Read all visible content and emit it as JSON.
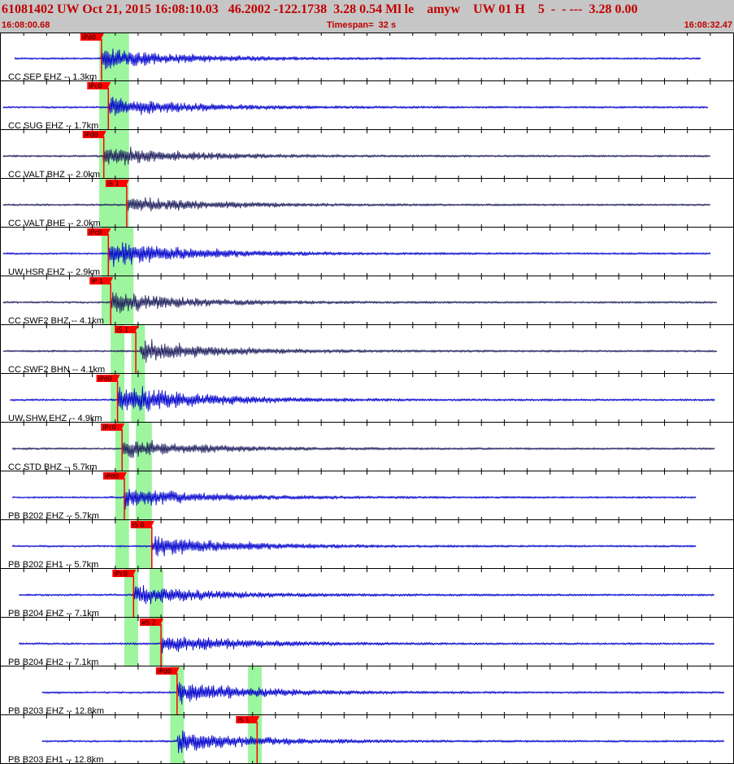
{
  "header": {
    "title": "61081402 UW Oct 21, 2015 16:08:10.03   46.2002 -122.1738  3.28 0.54 Ml le    amyw    UW 01 H    5  -  - ---  3.28 0.00",
    "start_time": "16:08:00.68",
    "timespan": "Timespan=  32 s",
    "end_time": "16:08:32.47"
  },
  "colors": {
    "header_bg": "#c6c6c6",
    "header_text": "#c00000",
    "trace_blue": "#0000cc",
    "trace_dark": "#1c1c5c",
    "pick_red": "#ff0000",
    "pick_window_green": "#9df59d",
    "minute_ticks": "#000000"
  },
  "time_window": {
    "start": 0,
    "end": 32
  },
  "channels": [
    {
      "label": "CC SEP EHZ -- 1.3km",
      "color": "blue",
      "trace": [
        0.6,
        30.6
      ],
      "onset": 4.4,
      "amp": 0.55,
      "pwin": [
        4.3,
        4.9
      ],
      "swin": [
        4.9,
        5.6
      ],
      "picks": [
        {
          "tag": "iPd0",
          "t": 4.4
        }
      ]
    },
    {
      "label": "CC SUG EHZ -- 1.7km",
      "color": "blue",
      "trace": [
        0.1,
        30.9
      ],
      "onset": 4.7,
      "amp": 0.5,
      "pwin": [
        4.3,
        4.9
      ],
      "swin": [
        4.9,
        5.6
      ],
      "picks": [
        {
          "tag": "iPc0",
          "t": 4.7
        }
      ]
    },
    {
      "label": "CC VALT BHZ -- 2.0km",
      "color": "dark",
      "trace": [
        0.1,
        31.0
      ],
      "onset": 4.5,
      "amp": 0.55,
      "pwin": [
        4.3,
        4.9
      ],
      "swin": [
        4.9,
        5.6
      ],
      "picks": [
        {
          "tag": "iPd0",
          "t": 4.5
        }
      ]
    },
    {
      "label": "CC VALT BHE -- 2.0km",
      "color": "dark",
      "trace": [
        0.1,
        31.0
      ],
      "onset": 5.5,
      "amp": 0.45,
      "pwin": [
        4.3,
        4.9
      ],
      "swin": [
        4.9,
        5.6
      ],
      "picks": [
        {
          "tag": "iS 1",
          "t": 5.5
        }
      ]
    },
    {
      "label": "UW HSR EHZ -- 2.9km",
      "color": "blue",
      "trace": [
        0.1,
        31.0
      ],
      "onset": 4.7,
      "amp": 0.7,
      "pwin": [
        4.4,
        5.0
      ],
      "swin": [
        5.0,
        5.8
      ],
      "picks": [
        {
          "tag": "iPc0",
          "t": 4.7
        }
      ]
    },
    {
      "label": "CC SWF2 BHZ -- 4.1km",
      "color": "dark",
      "trace": [
        0.1,
        31.3
      ],
      "onset": 4.8,
      "amp": 0.55,
      "pwin": [
        4.4,
        5.0
      ],
      "swin": [
        5.0,
        5.8
      ],
      "picks": [
        {
          "tag": "iP 1",
          "t": 4.8
        }
      ]
    },
    {
      "label": "CC SWF2 BHN -- 4.1km",
      "color": "dark",
      "trace": [
        0.1,
        31.3
      ],
      "onset": 6.1,
      "amp": 0.55,
      "pwin": [
        4.8,
        5.4
      ],
      "swin": [
        5.7,
        6.3
      ],
      "picks": [
        {
          "tag": "iS 1",
          "t": 5.9
        }
      ]
    },
    {
      "label": "UW SHW EHZ -- 4.9km",
      "color": "blue",
      "trace": [
        0.4,
        31.2
      ],
      "onset": 5.1,
      "amp": 0.8,
      "pwin": [
        4.8,
        5.4
      ],
      "swin": [
        5.7,
        6.3
      ],
      "picks": [
        {
          "tag": "iPd0",
          "t": 5.1
        }
      ]
    },
    {
      "label": "CC STD BHZ -- 5.7km",
      "color": "dark",
      "trace": [
        0.5,
        31.2
      ],
      "onset": 5.3,
      "amp": 0.5,
      "pwin": [
        5.0,
        5.6
      ],
      "swin": [
        5.9,
        6.6
      ],
      "picks": [
        {
          "tag": "iPc0",
          "t": 5.3
        }
      ]
    },
    {
      "label": "PB B202 EHZ -- 5.7km",
      "color": "blue",
      "trace": [
        0.5,
        30.4
      ],
      "onset": 5.4,
      "amp": 0.55,
      "pwin": [
        5.0,
        5.6
      ],
      "swin": [
        5.9,
        6.6
      ],
      "picks": [
        {
          "tag": "iPd0",
          "t": 5.4
        }
      ]
    },
    {
      "label": "PB B202 EH1 -- 5.7km",
      "color": "blue",
      "trace": [
        0.5,
        30.4
      ],
      "onset": 6.6,
      "amp": 0.55,
      "pwin": [
        5.0,
        5.6
      ],
      "swin": [
        5.9,
        6.6
      ],
      "picks": [
        {
          "tag": "iS 0",
          "t": 6.6
        }
      ]
    },
    {
      "label": "PB B204 EHZ -- 7.1km",
      "color": "blue",
      "trace": [
        0.8,
        31.2
      ],
      "onset": 5.8,
      "amp": 0.5,
      "pwin": [
        5.4,
        6.0
      ],
      "swin": [
        6.5,
        7.1
      ],
      "picks": [
        {
          "tag": "iPc0",
          "t": 5.8
        }
      ]
    },
    {
      "label": "PB B204 EH2 -- 7.1km",
      "color": "blue",
      "trace": [
        0.8,
        31.2
      ],
      "onset": 7.0,
      "amp": 0.5,
      "pwin": [
        5.4,
        6.0
      ],
      "swin": [
        6.5,
        7.1
      ],
      "picks": [
        {
          "tag": "eS 2",
          "t": 7.0
        }
      ]
    },
    {
      "label": "PB B203 EHZ -- 12.8km",
      "color": "blue",
      "trace": [
        1.8,
        31.6
      ],
      "onset": 7.7,
      "amp": 0.55,
      "pwin": [
        7.4,
        8.0
      ],
      "swin": [
        10.8,
        11.4
      ],
      "picks": [
        {
          "tag": "iPd0",
          "t": 7.7
        }
      ]
    },
    {
      "label": "PB B203 EH1 -- 12.8km",
      "color": "blue",
      "trace": [
        1.8,
        31.6
      ],
      "onset": 7.7,
      "amp": 0.55,
      "pwin": [
        7.4,
        8.0
      ],
      "swin": [
        10.8,
        11.4
      ],
      "picks": [
        {
          "tag": "iS 1",
          "t": 11.2
        }
      ]
    }
  ]
}
